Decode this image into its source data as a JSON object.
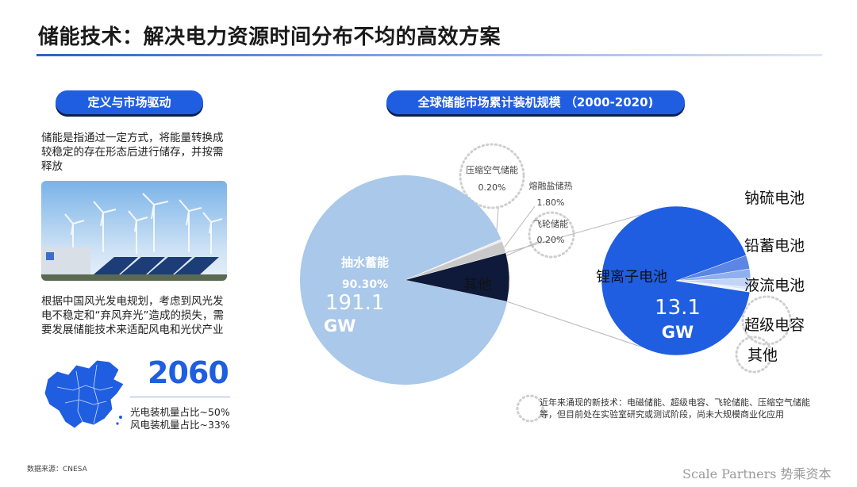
{
  "header": {
    "title": "储能技术：解决电力资源时间分布不均的高效方案"
  },
  "left": {
    "pill": "定义与市场驱动",
    "intro": "储能是指通过一定方式，将能量转换成较稳定的存在形态后进行储存，并按需释放",
    "plan": "根据中国风光发电规划，考虑到风光发电不稳定和“弃风弃光”造成的损失，需要发展储能技术来适配风电和光伏产业",
    "year": "2060",
    "stat1": "光电装机量占比~50%",
    "stat2": "风电装机量占比~33%"
  },
  "right": {
    "pill": "全球储能市场累计装机规模 （2000-2020)",
    "note": "近年来涌现的新技术：电磁储能、超级电容、飞轮储能、压缩空气储能等，但目前处在实验室研究或测试阶段，尚未大规模商业化应用"
  },
  "footer": {
    "source": "数据来源：CNESA",
    "brand": "Scale Partners 势乘资本"
  },
  "colors": {
    "accent": "#1f5ee0",
    "pumped": "#a9c8ea",
    "other_dark": "#0f1a3a",
    "lithium": "#1f5ee0"
  },
  "chart_data": [
    {
      "type": "pie",
      "title": "",
      "total_label": "191.1",
      "total_unit": "GW",
      "slices": [
        {
          "label": "抽水蓄能",
          "value": 90.3,
          "display": "90.30%"
        },
        {
          "label": "其他",
          "value": 7.5,
          "display": ""
        },
        {
          "label": "熔融盐储热",
          "value": 1.8,
          "display": "1.80%"
        },
        {
          "label": "飞轮储能",
          "value": 0.2,
          "display": "0.20%"
        },
        {
          "label": "压缩空气储能",
          "value": 0.2,
          "display": "0.20%"
        }
      ]
    },
    {
      "type": "pie",
      "title": "",
      "total_label": "13.1",
      "total_unit": "GW",
      "slices": [
        {
          "label": "锂离子电池",
          "value": 92
        },
        {
          "label": "钠硫电池",
          "value": 3
        },
        {
          "label": "铅蓄电池",
          "value": 2
        },
        {
          "label": "液流电池",
          "value": 2
        },
        {
          "label": "超级电容",
          "value": 0.5
        },
        {
          "label": "其他",
          "value": 0.5
        }
      ]
    }
  ]
}
